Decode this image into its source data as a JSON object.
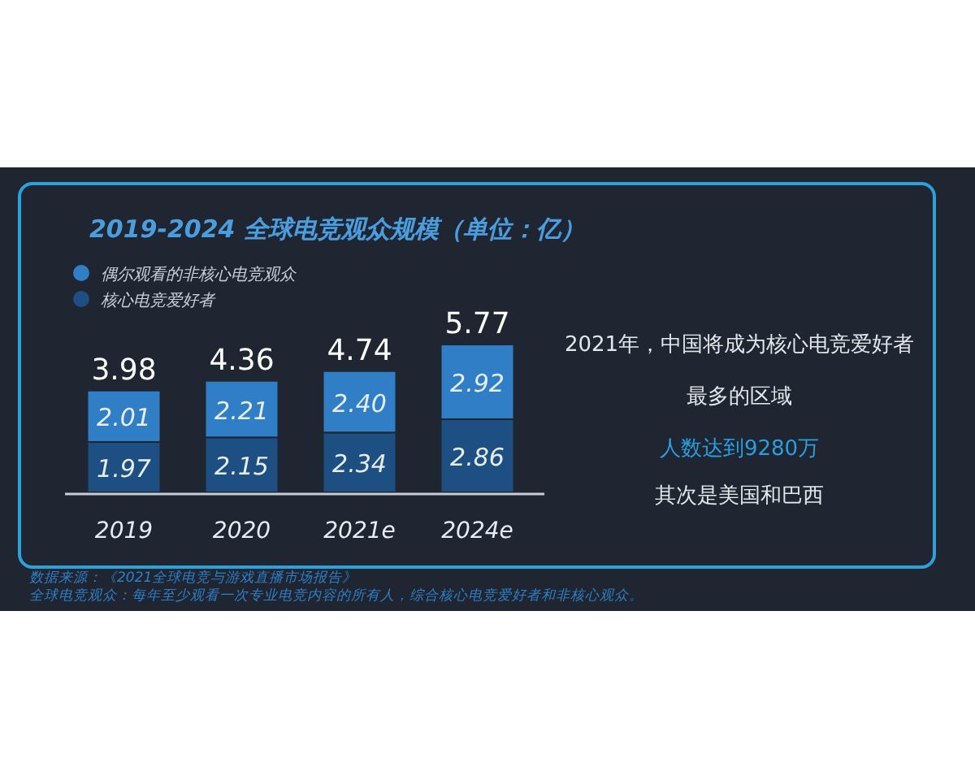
{
  "chart_data": {
    "type": "bar",
    "title": "2019-2024 全球电竞观众规模（单位：亿）",
    "categories": [
      "2019",
      "2020",
      "2021e",
      "2024e"
    ],
    "stacked": true,
    "legend": "top left",
    "series": [
      {
        "name": "核心电竞爱好者",
        "color": "#1d4f82",
        "values": [
          1.97,
          2.15,
          2.34,
          2.86
        ],
        "value_labels": [
          "1.97",
          "2.15",
          "2.34",
          "2.86"
        ]
      },
      {
        "name": "偶尔观看的非核心电竞观众",
        "color": "#2f7ec6",
        "values": [
          2.01,
          2.21,
          2.4,
          2.92
        ],
        "value_labels": [
          "2.01",
          "2.21",
          "2.40",
          "2.92"
        ]
      }
    ],
    "totals": [
      "3.98",
      "4.36",
      "4.74",
      "5.77"
    ],
    "annotations": [
      "2021年，中国将成为核心电竞爱好者",
      "最多的区域",
      "人数达到9280万",
      "其次是美国和巴西",
      "数据来源：《2021全球电竞与游戏直播市场报告》",
      "全球电竞观众：每年至少观看一次专业电竞内容的所有人，综合核心电竞爱好者和非核心观众。"
    ]
  }
}
